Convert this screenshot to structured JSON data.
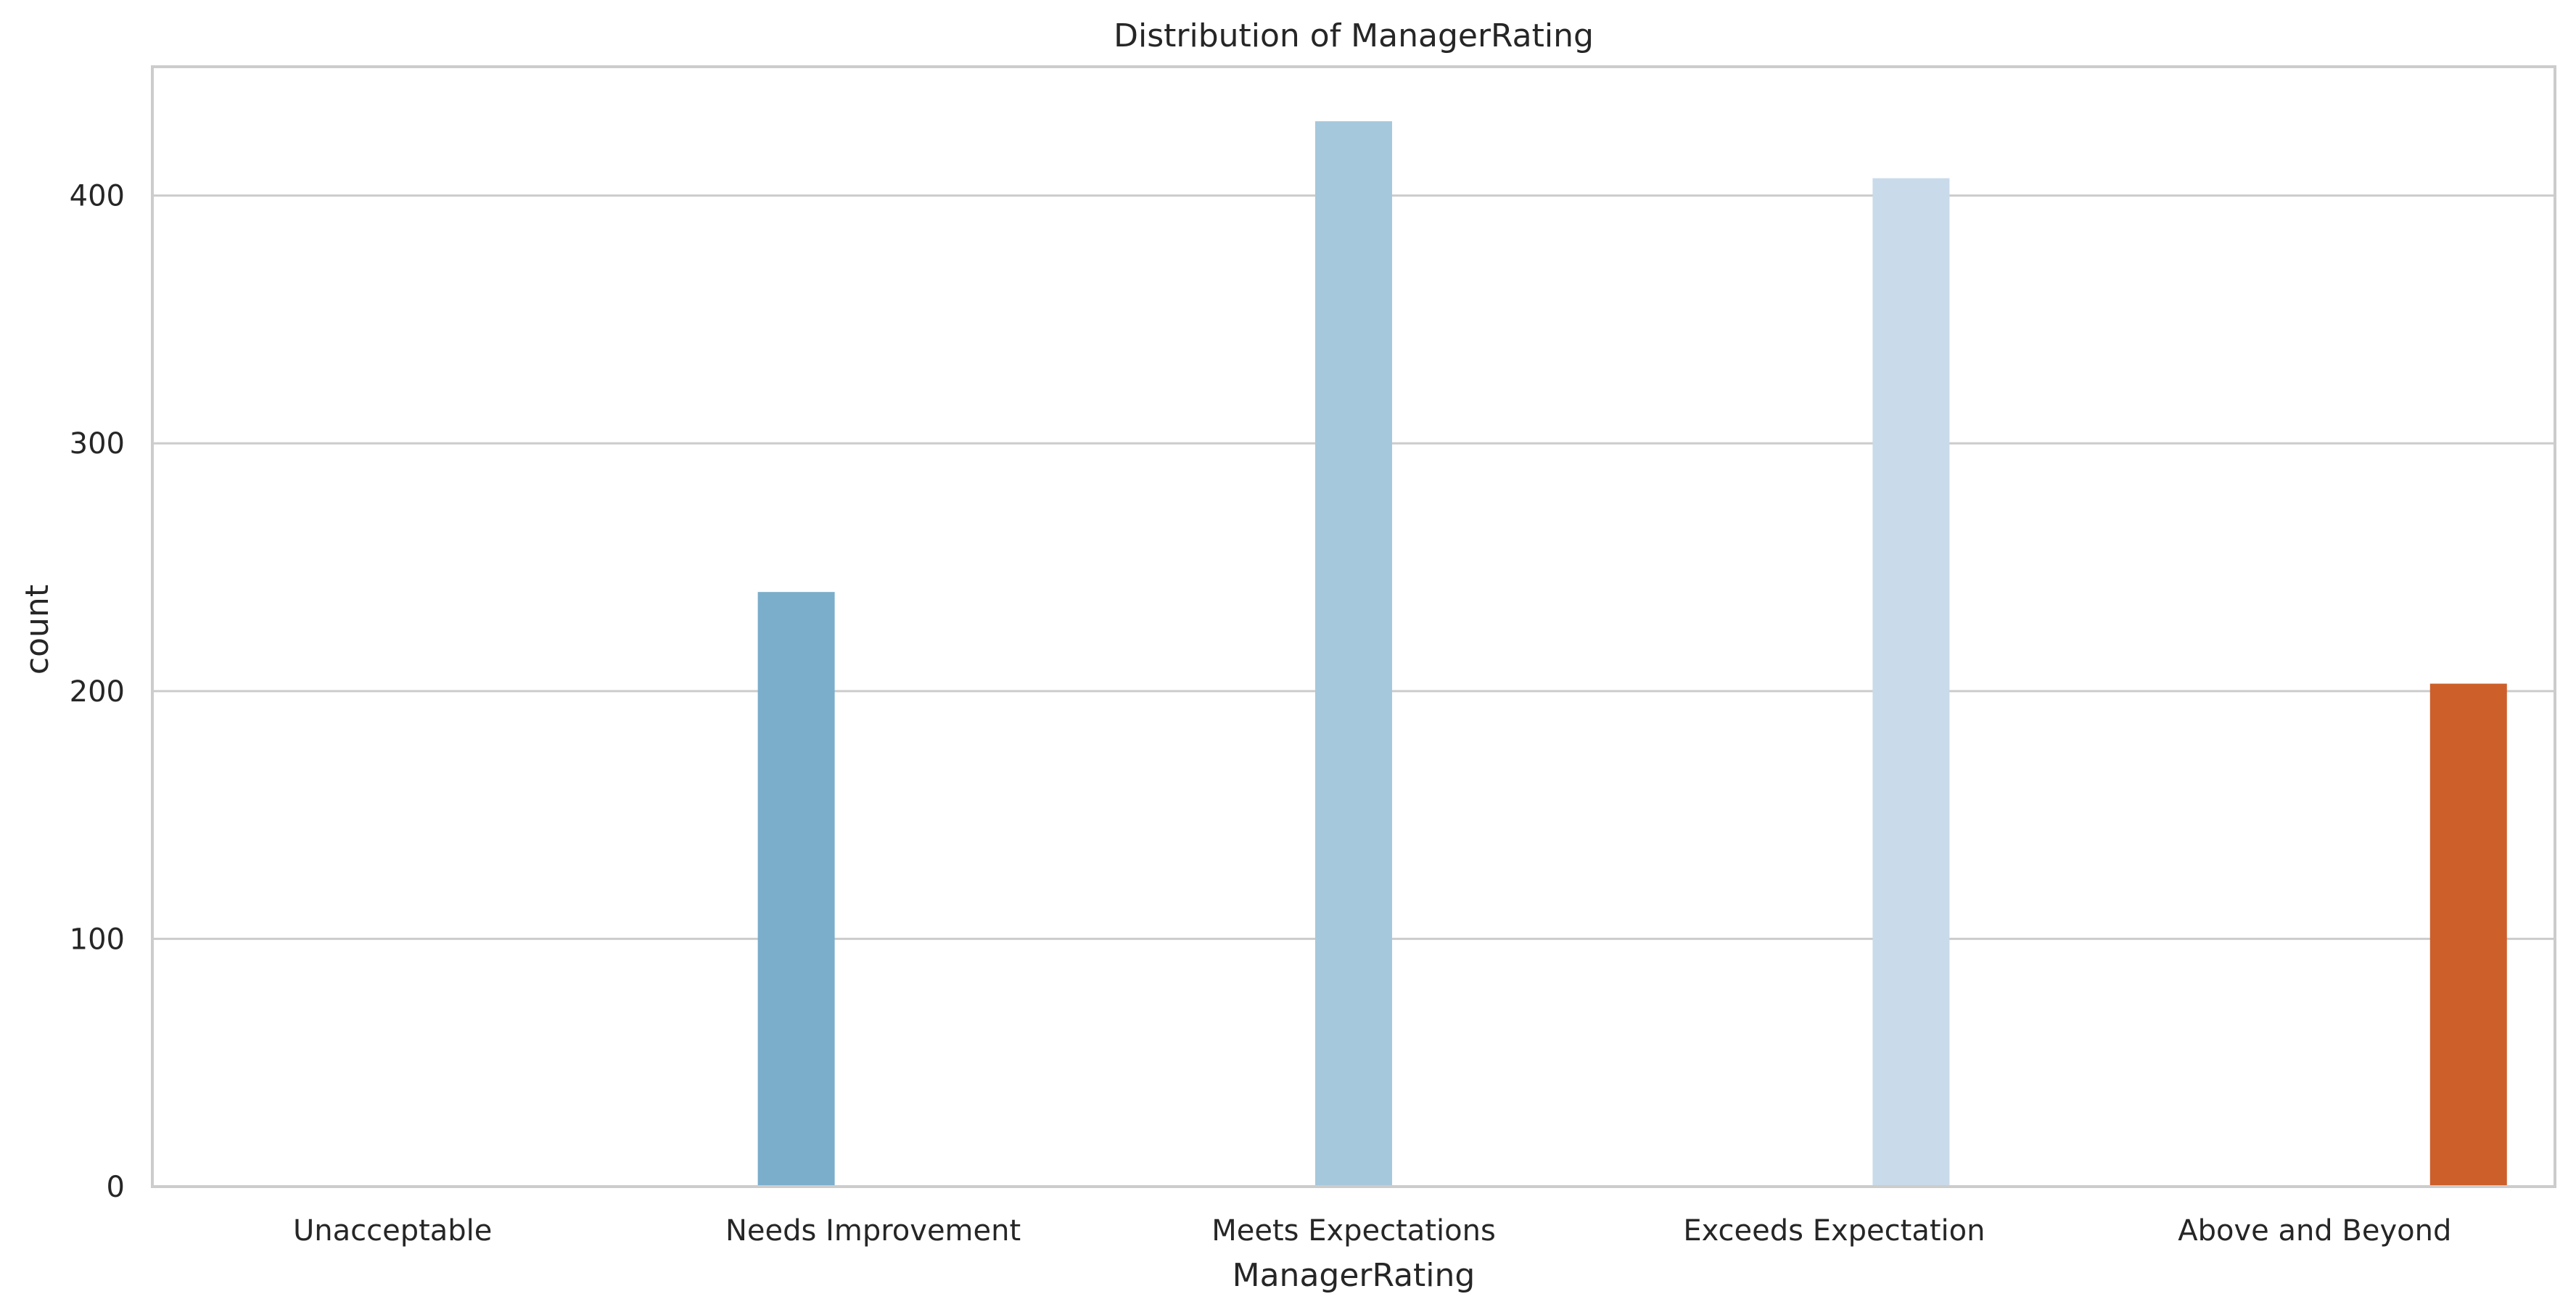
{
  "chart_data": {
    "type": "bar",
    "title": "Distribution of ManagerRating",
    "xlabel": "ManagerRating",
    "ylabel": "count",
    "categories": [
      "Unacceptable",
      "Needs Improvement",
      "Meets Expectations",
      "Exceeds Expectation",
      "Above and Beyond"
    ],
    "values": [
      0,
      240,
      430,
      407,
      203
    ],
    "colors": [
      "#4a90c2",
      "#7aaecb",
      "#a6c8dc",
      "#c9dbea",
      "#cc5f2a"
    ],
    "ylim": [
      0,
      452
    ],
    "yticks": [
      0,
      100,
      200,
      300,
      400
    ],
    "grid": true,
    "grid_axis": "y",
    "series_offset": "hue-dodged",
    "legend": "none"
  }
}
